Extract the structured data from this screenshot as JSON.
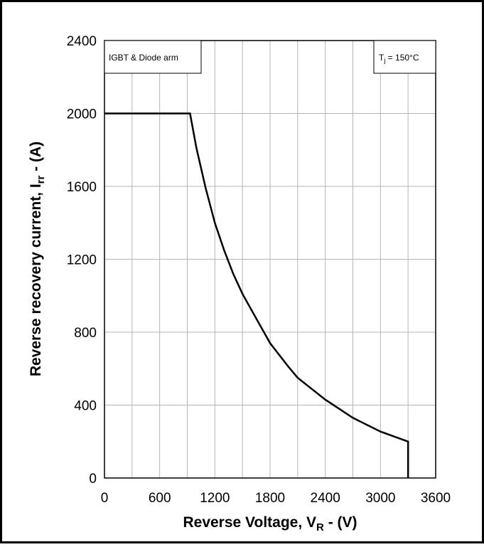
{
  "chart_data": {
    "type": "line",
    "ylabel_main": "Reverse recovery current, I",
    "ylabel_sub": "rr",
    "ylabel_tail": " - (A)",
    "xlabel_main": "Reverse Voltage, V",
    "xlabel_sub": "R",
    "xlabel_tail": " - (V)",
    "xlim": [
      0,
      3600
    ],
    "ylim": [
      0,
      2400
    ],
    "x_ticks": [
      0,
      600,
      1200,
      1800,
      2400,
      3000,
      3600
    ],
    "y_ticks": [
      0,
      400,
      800,
      1200,
      1600,
      2000,
      2400
    ],
    "x_grid_step": 300,
    "y_grid_step": 400,
    "grid": true,
    "annotations": {
      "left_box": "IGBT & Diode arm",
      "right_box_main": "T",
      "right_box_sub": "j",
      "right_box_tail": " = 150°C"
    },
    "series": [
      {
        "values_x": [
          0,
          930,
          1000,
          1100,
          1200,
          1300,
          1400,
          1500,
          1600,
          1800,
          2000,
          2100,
          2400,
          2700,
          3000,
          3300,
          3300
        ],
        "values_y": [
          2000,
          2000,
          1810,
          1590,
          1400,
          1250,
          1120,
          1010,
          920,
          740,
          610,
          550,
          430,
          330,
          255,
          200,
          0
        ],
        "color": "#000000"
      }
    ]
  }
}
